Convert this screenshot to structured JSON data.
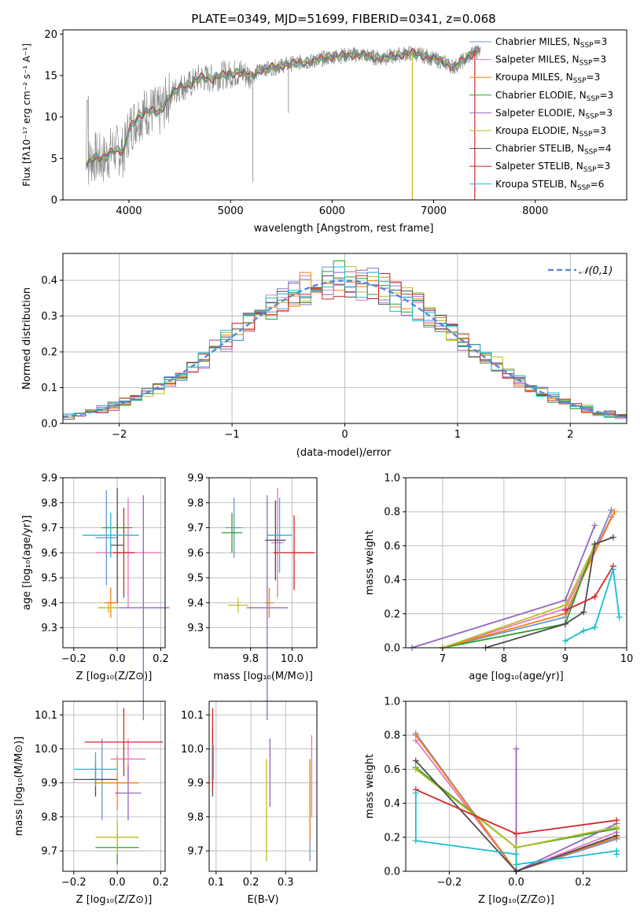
{
  "colors": [
    "#6c8ed6",
    "#e377c2",
    "#ff7f0e",
    "#2ca02c",
    "#9467bd",
    "#bcbd22",
    "#4d4d4d",
    "#d62728",
    "#17becf"
  ],
  "chart_data": [
    {
      "id": "spectrum",
      "type": "line",
      "title": "PLATE=0349, MJD=51699, FIBERID=0341, z=0.068",
      "xlabel": "wavelength [Angstrom, rest frame]",
      "ylabel": "Flux [fλ10⁻¹⁷ erg cm⁻² s⁻¹ A⁻¹]",
      "xlim": [
        3350,
        8900
      ],
      "ylim": [
        0,
        20.5
      ],
      "xticks": [
        4000,
        5000,
        6000,
        7000,
        8000
      ],
      "yticks": [
        0,
        5,
        10,
        15,
        20
      ],
      "legend": [
        "Chabrier MILES, N_SSP=3",
        "Salpeter MILES, N_SSP=3",
        "Kroupa MILES, N_SSP=3",
        "Chabrier ELODIE, N_SSP=3",
        "Salpeter ELODIE, N_SSP=3",
        "Kroupa ELODIE, N_SSP=3",
        "Chabrier STELIB, N_SSP=4",
        "Salpeter STELIB, N_SSP=3",
        "Kroupa STELIB, N_SSP=6"
      ],
      "data_color": "#808080",
      "model_continuum": [
        [
          3580,
          4.2
        ],
        [
          3650,
          5.2
        ],
        [
          3750,
          4.9
        ],
        [
          3850,
          6.1
        ],
        [
          3950,
          5.8
        ],
        [
          4000,
          8.5
        ],
        [
          4100,
          10.2
        ],
        [
          4200,
          10.8
        ],
        [
          4300,
          10.5
        ],
        [
          4400,
          12.5
        ],
        [
          4500,
          13.6
        ],
        [
          4600,
          13.9
        ],
        [
          4700,
          14.8
        ],
        [
          4800,
          14.6
        ],
        [
          4900,
          15.0
        ],
        [
          5000,
          15.2
        ],
        [
          5100,
          15.4
        ],
        [
          5200,
          14.9
        ],
        [
          5300,
          15.7
        ],
        [
          5400,
          15.9
        ],
        [
          5500,
          16.2
        ],
        [
          5600,
          16.4
        ],
        [
          5700,
          16.6
        ],
        [
          5800,
          16.7
        ],
        [
          5900,
          17.0
        ],
        [
          6000,
          17.3
        ],
        [
          6100,
          17.4
        ],
        [
          6200,
          17.5
        ],
        [
          6300,
          17.5
        ],
        [
          6400,
          17.2
        ],
        [
          6500,
          17.1
        ],
        [
          6600,
          17.3
        ],
        [
          6700,
          17.6
        ],
        [
          6800,
          17.7
        ],
        [
          6900,
          17.4
        ],
        [
          7000,
          17.0
        ],
        [
          7100,
          16.6
        ],
        [
          7200,
          16.0
        ],
        [
          7300,
          16.9
        ],
        [
          7400,
          17.8
        ],
        [
          7450,
          18.2
        ]
      ],
      "spikes": [
        [
          6790,
          0
        ],
        [
          7405,
          0
        ]
      ]
    },
    {
      "id": "residuals",
      "type": "histogram",
      "xlabel": "(data-model)/error",
      "ylabel": "Normed distribution",
      "xlim": [
        -2.5,
        2.5
      ],
      "ylim": [
        0,
        0.475
      ],
      "xticks": [
        -2,
        -1,
        0,
        1,
        2
      ],
      "yticks": [
        0.0,
        0.1,
        0.2,
        0.3,
        0.4
      ],
      "legend": [
        "𝒩(0,1)"
      ],
      "bin_width": 0.1,
      "bin_start": -2.5
    },
    {
      "id": "z-age",
      "type": "scatter",
      "xlabel": "Z [log₁₀(Z/Z⊙)]",
      "ylabel": "age  [log₁₀(age/yr)]",
      "xlim": [
        -0.25,
        0.22
      ],
      "ylim": [
        9.22,
        9.9
      ],
      "xticks": [
        -0.2,
        0.0,
        0.2
      ],
      "xticklabels": [
        "−0.2",
        "0.0",
        "0.2"
      ],
      "yticks": [
        9.3,
        9.4,
        9.5,
        9.6,
        9.7,
        9.8,
        9.9
      ],
      "points": [
        {
          "x": -0.05,
          "y": 9.66,
          "xerr": 0.05,
          "yerr": 0.19,
          "c": 0
        },
        {
          "x": 0.05,
          "y": 9.6,
          "xerr": 0.15,
          "yerr": 0.22,
          "c": 1
        },
        {
          "x": -0.03,
          "y": 9.4,
          "xerr": 0.03,
          "yerr": 0.06,
          "c": 2
        },
        {
          "x": 0.0,
          "y": 9.7,
          "xerr": 0.07,
          "yerr": 0.07,
          "c": 3
        },
        {
          "x": 0.12,
          "y": 9.38,
          "xerr": 0.12,
          "yerr": 0.45,
          "c": 4
        },
        {
          "x": -0.04,
          "y": 9.38,
          "xerr": 0.05,
          "yerr": 0.02,
          "c": 5
        },
        {
          "x": 0.0,
          "y": 9.63,
          "xerr": 0.03,
          "yerr": 0.23,
          "c": 6
        },
        {
          "x": 0.03,
          "y": 9.6,
          "xerr": 0.05,
          "yerr": 0.18,
          "c": 7
        },
        {
          "x": -0.03,
          "y": 9.67,
          "xerr": 0.13,
          "yerr": 0.09,
          "c": 8
        }
      ]
    },
    {
      "id": "mass-age",
      "type": "scatter",
      "xlabel": "mass [log₁₀(M/M⊙)]",
      "xlim": [
        9.6,
        10.12
      ],
      "ylim": [
        9.22,
        9.9
      ],
      "xticks": [
        9.8,
        10.0
      ],
      "xticklabels": [
        "9.8",
        "10.0"
      ],
      "yticks": [
        9.3,
        9.4,
        9.5,
        9.6,
        9.7,
        9.8,
        9.9
      ],
      "points": [
        {
          "x": 9.72,
          "y": 9.7,
          "xerr": 0.04,
          "yerr": 0.12,
          "c": 0
        },
        {
          "x": 9.93,
          "y": 9.64,
          "xerr": 0.03,
          "yerr": 0.22,
          "c": 1
        },
        {
          "x": 9.89,
          "y": 9.4,
          "xerr": 0.02,
          "yerr": 0.06,
          "c": 2
        },
        {
          "x": 9.71,
          "y": 9.68,
          "xerr": 0.05,
          "yerr": 0.08,
          "c": 3
        },
        {
          "x": 9.88,
          "y": 9.38,
          "xerr": 0.1,
          "yerr": 0.45,
          "c": 4
        },
        {
          "x": 9.74,
          "y": 9.39,
          "xerr": 0.05,
          "yerr": 0.03,
          "c": 5
        },
        {
          "x": 9.92,
          "y": 9.65,
          "xerr": 0.05,
          "yerr": 0.16,
          "c": 6
        },
        {
          "x": 10.01,
          "y": 9.6,
          "xerr": 0.1,
          "yerr": 0.15,
          "c": 7
        },
        {
          "x": 9.94,
          "y": 9.67,
          "xerr": 0.06,
          "yerr": 0.15,
          "c": 8
        }
      ]
    },
    {
      "id": "age-weight",
      "type": "line",
      "xlabel": "age  [log₁₀(age/yr)]",
      "ylabel": "mass weight",
      "xlim": [
        6.4,
        10.0
      ],
      "ylim": [
        0,
        1.0
      ],
      "xticks": [
        7,
        8,
        9,
        10
      ],
      "yticks": [
        0.0,
        0.2,
        0.4,
        0.6,
        0.8,
        1.0
      ],
      "series": [
        {
          "c": 0,
          "pts": [
            [
              7.0,
              0.0
            ],
            [
              9.0,
              0.18
            ],
            [
              9.75,
              0.81
            ]
          ]
        },
        {
          "c": 1,
          "pts": [
            [
              7.0,
              0.0
            ],
            [
              9.0,
              0.23
            ],
            [
              9.75,
              0.77
            ]
          ]
        },
        {
          "c": 2,
          "pts": [
            [
              7.0,
              0.0
            ],
            [
              9.0,
              0.2
            ],
            [
              9.8,
              0.8
            ]
          ]
        },
        {
          "c": 3,
          "pts": [
            [
              7.0,
              0.0
            ],
            [
              9.0,
              0.14
            ],
            [
              9.48,
              0.61
            ]
          ]
        },
        {
          "c": 4,
          "pts": [
            [
              6.5,
              0.0
            ],
            [
              9.0,
              0.28
            ],
            [
              9.48,
              0.72
            ]
          ]
        },
        {
          "c": 5,
          "pts": [
            [
              7.0,
              0.0
            ],
            [
              9.0,
              0.25
            ],
            [
              9.48,
              0.6
            ]
          ]
        },
        {
          "c": 6,
          "pts": [
            [
              7.7,
              0.0
            ],
            [
              9.0,
              0.14
            ],
            [
              9.3,
              0.21
            ],
            [
              9.48,
              0.61
            ],
            [
              9.78,
              0.65
            ]
          ]
        },
        {
          "c": 7,
          "pts": [
            [
              9.0,
              0.22
            ],
            [
              9.48,
              0.3
            ],
            [
              9.78,
              0.48
            ]
          ]
        },
        {
          "c": 8,
          "pts": [
            [
              9.0,
              0.04
            ],
            [
              9.3,
              0.1
            ],
            [
              9.48,
              0.12
            ],
            [
              9.78,
              0.46
            ],
            [
              9.88,
              0.18
            ]
          ]
        }
      ]
    },
    {
      "id": "z-mass",
      "type": "scatter",
      "xlabel": "Z [log₁₀(Z/Z⊙)]",
      "ylabel": "mass [log₁₀(M/M⊙)]",
      "xlim": [
        -0.25,
        0.22
      ],
      "ylim": [
        9.64,
        10.14
      ],
      "xticks": [
        -0.2,
        0.0,
        0.2
      ],
      "xticklabels": [
        "−0.2",
        "0.0",
        "0.2"
      ],
      "yticks": [
        9.7,
        9.8,
        9.9,
        10.0,
        10.1
      ],
      "points": [
        {
          "x": -0.07,
          "y": 9.91,
          "xerr": 0.05,
          "yerr": 0.12,
          "c": 0
        },
        {
          "x": 0.05,
          "y": 9.97,
          "xerr": 0.08,
          "yerr": 0.06,
          "c": 1
        },
        {
          "x": 0.0,
          "y": 9.9,
          "xerr": 0.1,
          "yerr": 0.08,
          "c": 2
        },
        {
          "x": 0.0,
          "y": 9.71,
          "xerr": 0.1,
          "yerr": 0.05,
          "c": 3
        },
        {
          "x": 0.05,
          "y": 9.87,
          "xerr": 0.06,
          "yerr": 0.08,
          "c": 4
        },
        {
          "x": 0.0,
          "y": 9.74,
          "xerr": 0.1,
          "yerr": 0.05,
          "c": 5
        },
        {
          "x": -0.1,
          "y": 9.91,
          "xerr": 0.1,
          "yerr": 0.05,
          "c": 6
        },
        {
          "x": 0.03,
          "y": 10.02,
          "xerr": 0.18,
          "yerr": 0.1,
          "c": 7
        },
        {
          "x": -0.1,
          "y": 9.94,
          "xerr": 0.1,
          "yerr": 0.05,
          "c": 8
        }
      ]
    },
    {
      "id": "ebv-mass",
      "type": "scatter",
      "xlabel": "E(B-V)",
      "xlim": [
        0.08,
        0.39
      ],
      "ylim": [
        9.64,
        10.14
      ],
      "xticks": [
        0.1,
        0.2,
        0.3
      ],
      "xticklabels": [
        "0.1",
        "0.2",
        "0.3"
      ],
      "yticks": [
        9.7,
        9.8,
        9.9,
        10.0,
        10.1
      ],
      "points": [
        {
          "x": 0.37,
          "y": 9.82,
          "yerr": 0.15,
          "c": 0
        },
        {
          "x": 0.375,
          "y": 9.92,
          "yerr": 0.12,
          "c": 1
        },
        {
          "x": 0.37,
          "y": 9.85,
          "yerr": 0.12,
          "c": 2
        },
        {
          "x": 0.09,
          "y": 9.95,
          "yerr": 0.05,
          "c": 3
        },
        {
          "x": 0.255,
          "y": 9.93,
          "yerr": 0.1,
          "c": 4
        },
        {
          "x": 0.245,
          "y": 9.82,
          "yerr": 0.15,
          "c": 5
        },
        {
          "x": 0.09,
          "y": 9.96,
          "yerr": 0.1,
          "c": 6
        },
        {
          "x": 0.09,
          "y": 10.0,
          "yerr": 0.12,
          "c": 7
        },
        {
          "x": 0.092,
          "y": 9.96,
          "yerr": 0.05,
          "c": 8
        }
      ]
    },
    {
      "id": "z-weight",
      "type": "line",
      "xlabel": "Z [log₁₀(Z/Z⊙)]",
      "ylabel": "mass weight",
      "xlim": [
        -0.33,
        0.33
      ],
      "ylim": [
        0,
        1.0
      ],
      "xticks": [
        -0.2,
        0.0,
        0.2
      ],
      "xticklabels": [
        "−0.2",
        "0.0",
        "0.2"
      ],
      "yticks": [
        0.0,
        0.2,
        0.4,
        0.6,
        0.8,
        1.0
      ],
      "series": [
        {
          "c": 0,
          "pts": [
            [
              -0.3,
              0.81
            ],
            [
              0.0,
              0.0
            ],
            [
              0.3,
              0.19
            ]
          ]
        },
        {
          "c": 1,
          "pts": [
            [
              -0.3,
              0.77
            ],
            [
              0.0,
              0.0
            ],
            [
              0.3,
              0.23
            ]
          ]
        },
        {
          "c": 2,
          "pts": [
            [
              -0.3,
              0.8
            ],
            [
              0.0,
              0.0
            ],
            [
              0.3,
              0.2
            ]
          ]
        },
        {
          "c": 3,
          "pts": [
            [
              -0.3,
              0.61
            ],
            [
              0.0,
              0.14
            ],
            [
              0.3,
              0.25
            ]
          ]
        },
        {
          "c": 4,
          "pts": [
            [
              0.0,
              0.72
            ],
            [
              0.0,
              0.0
            ],
            [
              0.3,
              0.28
            ]
          ]
        },
        {
          "c": 5,
          "pts": [
            [
              -0.3,
              0.6
            ],
            [
              0.0,
              0.14
            ],
            [
              0.3,
              0.26
            ]
          ]
        },
        {
          "c": 6,
          "pts": [
            [
              -0.3,
              0.65
            ],
            [
              0.0,
              0.0
            ],
            [
              0.3,
              0.21
            ]
          ]
        },
        {
          "c": 7,
          "pts": [
            [
              -0.3,
              0.48
            ],
            [
              0.0,
              0.22
            ],
            [
              0.3,
              0.3
            ]
          ]
        },
        {
          "c": 8,
          "pts": [
            [
              -0.3,
              0.46
            ],
            [
              -0.3,
              0.18
            ],
            [
              0.0,
              0.1
            ],
            [
              0.0,
              0.04
            ],
            [
              0.3,
              0.12
            ],
            [
              0.3,
              0.1
            ]
          ]
        }
      ]
    }
  ]
}
